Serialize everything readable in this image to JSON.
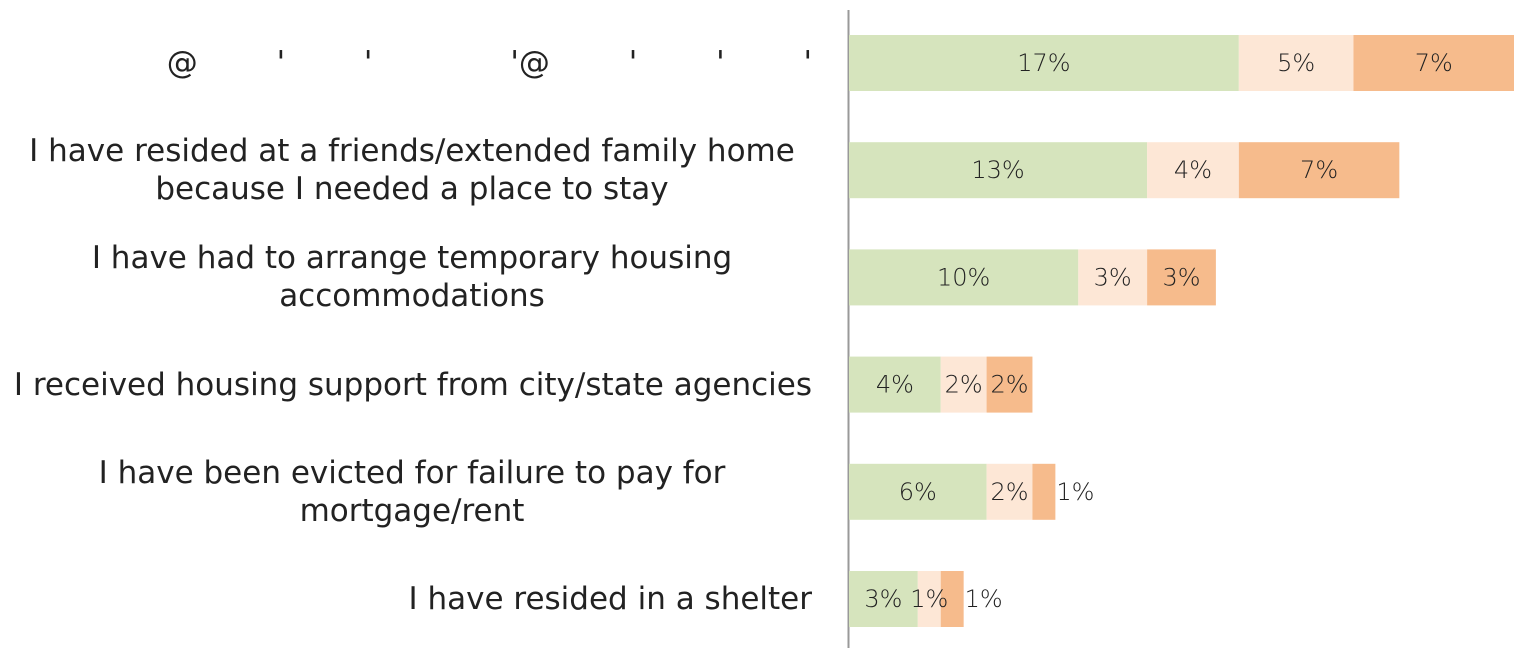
{
  "chart_data": {
    "type": "stacked-barh",
    "categories": [
      "@        '        '              '@        '        '        '",
      "I have resided at a friends/extended family home because I needed a place to stay",
      "I have had to arrange temporary housing accommodations",
      "I received housing support from city/state agencies",
      "I have been evicted for failure to pay for mortgage/rent",
      "I have resided in a shelter"
    ],
    "series": [
      {
        "color": "#d6e4bd",
        "values": [
          17,
          13,
          10,
          4,
          6,
          3
        ],
        "value_labels": [
          "17%",
          "13%",
          "10%",
          "4%",
          "6%",
          "3%"
        ]
      },
      {
        "color": "#fde7d6",
        "values": [
          5,
          4,
          3,
          2,
          2,
          1
        ],
        "value_labels": [
          "5%",
          "4%",
          "3%",
          "2%",
          "2%",
          "1%"
        ]
      },
      {
        "color": "#f6bb8c",
        "values": [
          7,
          7,
          3,
          2,
          1,
          1
        ],
        "value_labels": [
          "7%",
          "7%",
          "3%",
          "2%",
          "1%",
          "1%"
        ]
      }
    ],
    "xlim": [
      0,
      29
    ]
  }
}
